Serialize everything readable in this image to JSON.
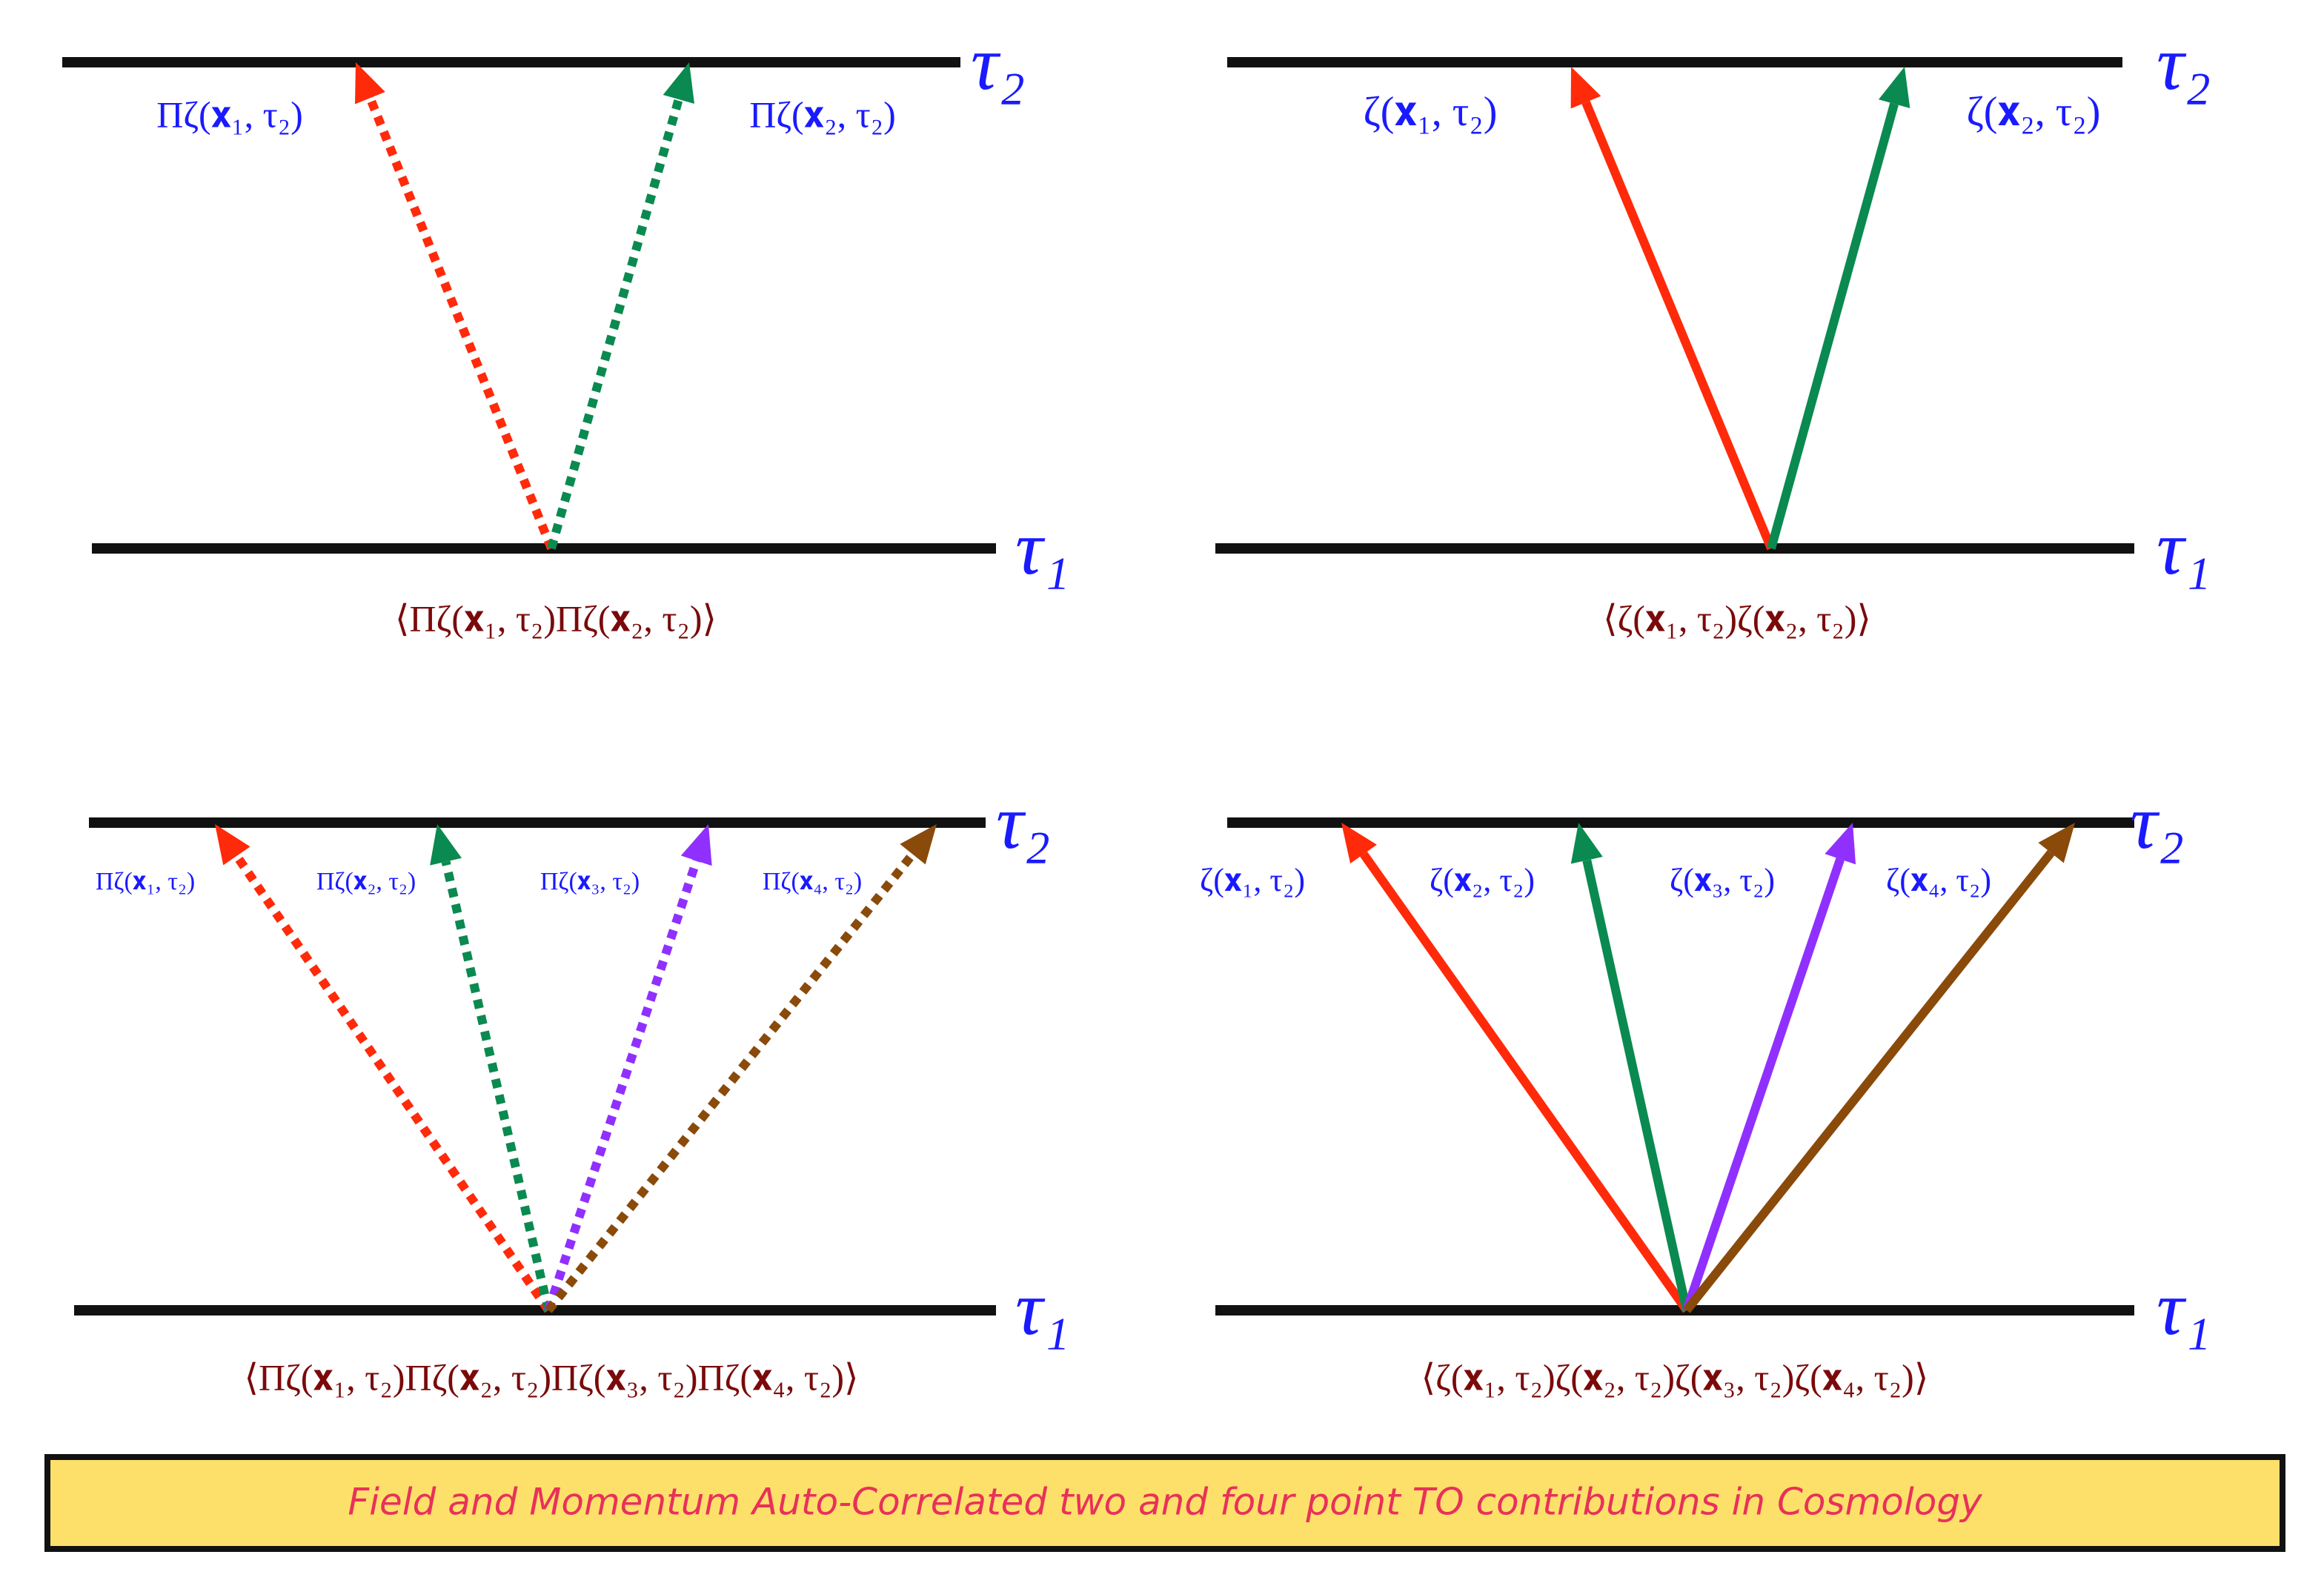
{
  "panels": [
    {
      "tau_top": "τ₂",
      "tau_bottom": "τ₁",
      "style": "dotted",
      "labels": [
        "Πζ(𝐱₁, τ₂)",
        "Πζ(𝐱₂, τ₂)"
      ],
      "colors": [
        "#ff2a0a",
        "#0a8a50"
      ],
      "correlator": "⟨Πζ(𝐱₁, τ₂)Πζ(𝐱₂, τ₂)⟩"
    },
    {
      "tau_top": "τ₂",
      "tau_bottom": "τ₁",
      "style": "solid",
      "labels": [
        "ζ(𝐱₁, τ₂)",
        "ζ(𝐱₂, τ₂)"
      ],
      "colors": [
        "#ff2a0a",
        "#0a8a50"
      ],
      "correlator": "⟨ζ(𝐱₁, τ₂)ζ(𝐱₂, τ₂)⟩"
    },
    {
      "tau_top": "τ₂",
      "tau_bottom": "τ₁",
      "style": "dotted",
      "labels": [
        "Πζ(𝐱₁, τ₂)",
        "Πζ(𝐱₂, τ₂)",
        "Πζ(𝐱₃, τ₂)",
        "Πζ(𝐱₄, τ₂)"
      ],
      "colors": [
        "#ff2a0a",
        "#0a8a50",
        "#9030ff",
        "#8a4a0a"
      ],
      "correlator": "⟨Πζ(𝐱₁, τ₂)Πζ(𝐱₂, τ₂)Πζ(𝐱₃, τ₂)Πζ(𝐱₄, τ₂)⟩"
    },
    {
      "tau_top": "τ₂",
      "tau_bottom": "τ₁",
      "style": "solid",
      "labels": [
        "ζ(𝐱₁, τ₂)",
        "ζ(𝐱₂, τ₂)",
        "ζ(𝐱₃, τ₂)",
        "ζ(𝐱₄, τ₂)"
      ],
      "colors": [
        "#ff2a0a",
        "#0a8a50",
        "#9030ff",
        "#8a4a0a"
      ],
      "correlator": "⟨ζ(𝐱₁, τ₂)ζ(𝐱₂, τ₂)ζ(𝐱₃, τ₂)ζ(𝐱₄, τ₂)⟩"
    }
  ],
  "caption": "Field and Momentum Auto-Correlated two and four point TO contributions in Cosmology"
}
